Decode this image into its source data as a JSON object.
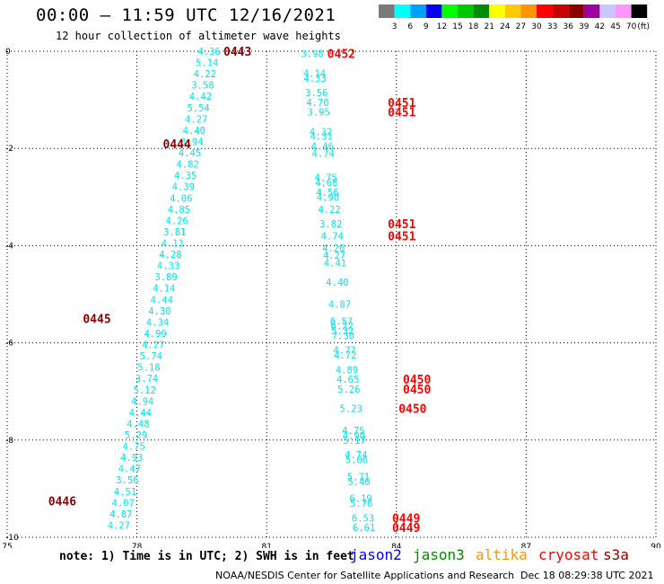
{
  "header": {
    "title": "00:00 – 11:59 UTC 12/16/2021",
    "subtitle": "12 hour collection of altimeter wave heights"
  },
  "colorbar": {
    "colors": [
      "#7a7a7a",
      "#00ffff",
      "#00a0ff",
      "#0000ff",
      "#00ff00",
      "#00c800",
      "#008c00",
      "#ffff00",
      "#ffc800",
      "#ff9600",
      "#ff0000",
      "#c80000",
      "#8c0000",
      "#a000a0",
      "#c8c8ff",
      "#ff96ff",
      "#000000"
    ],
    "labels": [
      "3",
      "6",
      "9",
      "12",
      "15",
      "18",
      "21",
      "24",
      "27",
      "30",
      "33",
      "36",
      "39",
      "42",
      "45",
      "70"
    ],
    "unit": "(ft)"
  },
  "map_data": {
    "x_axis": {
      "min": 75,
      "max": 90,
      "ticks": [
        "75",
        "78",
        "81",
        "84",
        "87",
        "90"
      ]
    },
    "y_axis": {
      "min": -10,
      "max": 0,
      "ticks": [
        "0",
        "-2",
        "-4",
        "-6",
        "-8",
        "-10"
      ]
    },
    "tracks": [
      {
        "name": "west",
        "values": [
          "4.36",
          "5.14",
          "4.22",
          "3.58",
          "4.42",
          "5.54",
          "4.27",
          "4.40",
          "3.94",
          "4.45",
          "4.82",
          "4.35",
          "4.39",
          "4.06",
          "4.85",
          "4.26",
          "3.81",
          "4.11",
          "4.28",
          "4.33",
          "3.89",
          "4.14",
          "4.44",
          "4.30",
          "4.34",
          "4.99",
          "4.27",
          "5.74",
          "5.18",
          "3.74",
          "5.12",
          "4.94",
          "4.44",
          "4.48",
          "5.29",
          "4.75",
          "4.93",
          "4.47",
          "3.56",
          "4.51",
          "4.07",
          "4.87",
          "4.27"
        ],
        "x_start": 79.67,
        "x_end": 77.58
      }
    ],
    "east_values": [
      {
        "v": "3.98",
        "lat": -0.05
      },
      {
        "v": "4.14",
        "lat": -0.45
      },
      {
        "v": "4.33",
        "lat": -0.55
      },
      {
        "v": "3.56",
        "lat": -0.85
      },
      {
        "v": "4.70",
        "lat": -1.05
      },
      {
        "v": "3.95",
        "lat": -1.25
      },
      {
        "v": "4.32",
        "lat": -1.65
      },
      {
        "v": "4.31",
        "lat": -1.75
      },
      {
        "v": "4.46",
        "lat": -1.95
      },
      {
        "v": "4.74",
        "lat": -2.1
      },
      {
        "v": "4.75",
        "lat": -2.6
      },
      {
        "v": "4.68",
        "lat": -2.7
      },
      {
        "v": "4.56",
        "lat": -2.9
      },
      {
        "v": "4.90",
        "lat": -3.0
      },
      {
        "v": "4.22",
        "lat": -3.25
      },
      {
        "v": "3.82",
        "lat": -3.55
      },
      {
        "v": "4.74",
        "lat": -3.8
      },
      {
        "v": "4.20",
        "lat": -4.05
      },
      {
        "v": "4.27",
        "lat": -4.2
      },
      {
        "v": "4.41",
        "lat": -4.35
      },
      {
        "v": "4.40",
        "lat": -4.75
      },
      {
        "v": "4.87",
        "lat": -5.2
      },
      {
        "v": "6.57",
        "lat": -5.55
      },
      {
        "v": "6.22",
        "lat": -5.65
      },
      {
        "v": "5.32",
        "lat": -5.75
      },
      {
        "v": "7.30",
        "lat": -5.85
      },
      {
        "v": "4.77",
        "lat": -6.15
      },
      {
        "v": "4.72",
        "lat": -6.25
      },
      {
        "v": "4.89",
        "lat": -6.55
      },
      {
        "v": "4.65",
        "lat": -6.75
      },
      {
        "v": "5.26",
        "lat": -6.95
      },
      {
        "v": "5.23",
        "lat": -7.35
      },
      {
        "v": "4.75",
        "lat": -7.8
      },
      {
        "v": "4.90",
        "lat": -7.9
      },
      {
        "v": "5.17",
        "lat": -8.0
      },
      {
        "v": "4.74",
        "lat": -8.3
      },
      {
        "v": "5.06",
        "lat": -8.4
      },
      {
        "v": "5.71",
        "lat": -8.75
      },
      {
        "v": "5.46",
        "lat": -8.85
      },
      {
        "v": "6.19",
        "lat": -9.2
      },
      {
        "v": "5.76",
        "lat": -9.3
      },
      {
        "v": "6.53",
        "lat": -9.6
      },
      {
        "v": "6.61",
        "lat": -9.8
      }
    ],
    "pass_labels": [
      {
        "text": "0443",
        "lon": 80.0,
        "lat": 0.0,
        "color": "#8c0000"
      },
      {
        "text": "0444",
        "lon": 78.6,
        "lat": -1.9,
        "color": "#8c0000"
      },
      {
        "text": "0445",
        "lon": 76.75,
        "lat": -5.5,
        "color": "#8c0000"
      },
      {
        "text": "0446",
        "lon": 75.95,
        "lat": -9.25,
        "color": "#8c0000"
      },
      {
        "text": "0452",
        "lon": 82.4,
        "lat": -0.05,
        "color": "#ff0000"
      },
      {
        "text": "0451",
        "lon": 83.8,
        "lat": -1.05,
        "color": "#ff0000"
      },
      {
        "text": "0451",
        "lon": 83.8,
        "lat": -1.25,
        "color": "#ff0000"
      },
      {
        "text": "0451",
        "lon": 83.8,
        "lat": -3.55,
        "color": "#ff0000"
      },
      {
        "text": "0451",
        "lon": 83.8,
        "lat": -3.8,
        "color": "#ff0000"
      },
      {
        "text": "0450",
        "lon": 84.15,
        "lat": -6.75,
        "color": "#ff0000"
      },
      {
        "text": "0450",
        "lon": 84.15,
        "lat": -6.95,
        "color": "#ff0000"
      },
      {
        "text": "0450",
        "lon": 84.05,
        "lat": -7.35,
        "color": "#ff0000"
      },
      {
        "text": "0449",
        "lon": 83.9,
        "lat": -9.6,
        "color": "#ff0000"
      },
      {
        "text": "0449",
        "lon": 83.9,
        "lat": -9.8,
        "color": "#ff0000"
      }
    ]
  },
  "note": "note: 1) Time is in UTC; 2) SWH is in feet",
  "satellites": [
    {
      "name": "jason2",
      "color": "#0000ff"
    },
    {
      "name": "jason3",
      "color": "#008c00"
    },
    {
      "name": "altika",
      "color": "#ff9600"
    },
    {
      "name": "cryosat",
      "color": "#ff0000"
    },
    {
      "name": "s3a",
      "color": "#8c0000"
    }
  ],
  "footer": {
    "credit": "NOAA/NESDIS Center for Satellite Applications and Research",
    "timestamp": "Dec 18 08:29:38 UTC 2021"
  }
}
